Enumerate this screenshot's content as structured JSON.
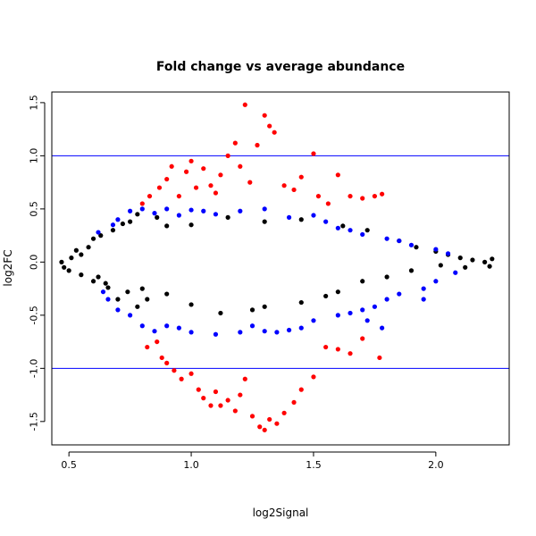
{
  "chart_data": {
    "type": "scatter",
    "title": "Fold change vs average abundance",
    "xlabel": "log2Signal",
    "ylabel": "log2FC",
    "xlim": [
      0.43,
      2.3
    ],
    "ylim": [
      -1.72,
      1.6
    ],
    "x_ticks": [
      0.5,
      1.0,
      1.5,
      2.0
    ],
    "x_tick_labels": [
      "0.5",
      "1.0",
      "1.5",
      "2.0"
    ],
    "y_ticks": [
      -1.5,
      -1.0,
      -0.5,
      0.0,
      0.5,
      1.0,
      1.5
    ],
    "y_tick_labels": [
      "-1.5",
      "-1.0",
      "-0.5",
      "0.0",
      "0.5",
      "1.0",
      "1.5"
    ],
    "grid": false,
    "reference_lines": [
      {
        "axis": "y",
        "value": 1.0,
        "color": "#0000ff"
      },
      {
        "axis": "y",
        "value": -1.0,
        "color": "#0000ff"
      }
    ],
    "series": [
      {
        "color": "#000000",
        "points": [
          [
            0.47,
            0.0
          ],
          [
            0.48,
            -0.05
          ],
          [
            0.5,
            -0.08
          ],
          [
            0.51,
            0.04
          ],
          [
            0.53,
            0.11
          ],
          [
            0.55,
            0.07
          ],
          [
            0.55,
            -0.12
          ],
          [
            0.58,
            0.14
          ],
          [
            0.6,
            0.22
          ],
          [
            0.62,
            -0.14
          ],
          [
            0.63,
            0.25
          ],
          [
            0.65,
            -0.2
          ],
          [
            0.68,
            0.3
          ],
          [
            0.7,
            -0.35
          ],
          [
            0.72,
            0.36
          ],
          [
            0.75,
            0.38
          ],
          [
            0.78,
            0.45
          ],
          [
            0.8,
            -0.25
          ],
          [
            0.86,
            0.42
          ],
          [
            0.9,
            0.34
          ],
          [
            1.0,
            0.35
          ],
          [
            1.15,
            0.42
          ],
          [
            1.3,
            0.38
          ],
          [
            1.45,
            0.4
          ],
          [
            1.62,
            0.34
          ],
          [
            1.72,
            0.3
          ],
          [
            1.85,
            0.2
          ],
          [
            1.92,
            0.14
          ],
          [
            2.0,
            0.1
          ],
          [
            2.05,
            0.07
          ],
          [
            2.1,
            0.04
          ],
          [
            2.15,
            0.02
          ],
          [
            2.2,
            0.0
          ],
          [
            2.22,
            -0.04
          ],
          [
            2.23,
            0.03
          ],
          [
            2.12,
            -0.05
          ],
          [
            2.02,
            -0.03
          ],
          [
            1.9,
            -0.08
          ],
          [
            1.8,
            -0.14
          ],
          [
            1.7,
            -0.18
          ],
          [
            1.6,
            -0.28
          ],
          [
            1.55,
            -0.32
          ],
          [
            1.45,
            -0.38
          ],
          [
            1.3,
            -0.42
          ],
          [
            1.25,
            -0.45
          ],
          [
            1.12,
            -0.48
          ],
          [
            1.0,
            -0.4
          ],
          [
            0.9,
            -0.3
          ],
          [
            0.82,
            -0.35
          ],
          [
            0.78,
            -0.42
          ],
          [
            0.74,
            -0.28
          ],
          [
            0.66,
            -0.24
          ],
          [
            0.6,
            -0.18
          ]
        ]
      },
      {
        "color": "#0000ff",
        "points": [
          [
            0.75,
            0.48
          ],
          [
            0.8,
            0.5
          ],
          [
            0.85,
            0.46
          ],
          [
            0.9,
            0.5
          ],
          [
            0.95,
            0.44
          ],
          [
            1.0,
            0.49
          ],
          [
            1.05,
            0.48
          ],
          [
            1.1,
            0.45
          ],
          [
            1.2,
            0.48
          ],
          [
            1.3,
            0.5
          ],
          [
            1.4,
            0.42
          ],
          [
            1.5,
            0.44
          ],
          [
            1.55,
            0.38
          ],
          [
            1.6,
            0.32
          ],
          [
            1.65,
            0.3
          ],
          [
            1.7,
            0.26
          ],
          [
            1.8,
            0.22
          ],
          [
            1.85,
            0.2
          ],
          [
            1.9,
            0.16
          ],
          [
            2.0,
            0.12
          ],
          [
            2.05,
            0.08
          ],
          [
            2.08,
            -0.1
          ],
          [
            2.0,
            -0.18
          ],
          [
            1.95,
            -0.25
          ],
          [
            1.85,
            -0.3
          ],
          [
            1.8,
            -0.35
          ],
          [
            1.75,
            -0.42
          ],
          [
            1.7,
            -0.45
          ],
          [
            1.65,
            -0.48
          ],
          [
            1.6,
            -0.5
          ],
          [
            1.5,
            -0.55
          ],
          [
            1.45,
            -0.62
          ],
          [
            1.4,
            -0.64
          ],
          [
            1.35,
            -0.66
          ],
          [
            1.3,
            -0.65
          ],
          [
            1.25,
            -0.6
          ],
          [
            1.2,
            -0.66
          ],
          [
            1.1,
            -0.68
          ],
          [
            1.0,
            -0.66
          ],
          [
            0.95,
            -0.62
          ],
          [
            0.9,
            -0.6
          ],
          [
            0.85,
            -0.65
          ],
          [
            0.8,
            -0.6
          ],
          [
            0.75,
            -0.5
          ],
          [
            0.7,
            -0.45
          ],
          [
            0.66,
            -0.35
          ],
          [
            0.64,
            -0.28
          ],
          [
            0.62,
            0.28
          ],
          [
            0.68,
            0.35
          ],
          [
            0.7,
            0.4
          ],
          [
            1.78,
            -0.62
          ],
          [
            1.72,
            -0.55
          ],
          [
            1.95,
            -0.35
          ]
        ]
      },
      {
        "color": "#ff0000",
        "points": [
          [
            0.8,
            0.55
          ],
          [
            0.83,
            0.62
          ],
          [
            0.87,
            0.7
          ],
          [
            0.9,
            0.78
          ],
          [
            0.92,
            0.9
          ],
          [
            0.95,
            0.62
          ],
          [
            0.98,
            0.85
          ],
          [
            1.0,
            0.95
          ],
          [
            1.02,
            0.7
          ],
          [
            1.05,
            0.88
          ],
          [
            1.08,
            0.72
          ],
          [
            1.1,
            0.65
          ],
          [
            1.12,
            0.82
          ],
          [
            1.15,
            1.0
          ],
          [
            1.18,
            1.12
          ],
          [
            1.2,
            0.9
          ],
          [
            1.22,
            1.48
          ],
          [
            1.24,
            0.75
          ],
          [
            1.27,
            1.1
          ],
          [
            1.3,
            1.38
          ],
          [
            1.32,
            1.28
          ],
          [
            1.34,
            1.22
          ],
          [
            1.38,
            0.72
          ],
          [
            1.42,
            0.68
          ],
          [
            1.45,
            0.8
          ],
          [
            1.5,
            1.02
          ],
          [
            1.52,
            0.62
          ],
          [
            1.56,
            0.55
          ],
          [
            1.6,
            0.82
          ],
          [
            1.65,
            0.62
          ],
          [
            1.7,
            0.6
          ],
          [
            1.75,
            0.62
          ],
          [
            1.78,
            0.64
          ],
          [
            0.82,
            -0.8
          ],
          [
            0.86,
            -0.75
          ],
          [
            0.88,
            -0.9
          ],
          [
            0.9,
            -0.95
          ],
          [
            0.93,
            -1.02
          ],
          [
            0.96,
            -1.1
          ],
          [
            1.0,
            -1.05
          ],
          [
            1.03,
            -1.2
          ],
          [
            1.05,
            -1.28
          ],
          [
            1.08,
            -1.35
          ],
          [
            1.1,
            -1.22
          ],
          [
            1.12,
            -1.35
          ],
          [
            1.15,
            -1.3
          ],
          [
            1.18,
            -1.4
          ],
          [
            1.2,
            -1.25
          ],
          [
            1.22,
            -1.1
          ],
          [
            1.25,
            -1.45
          ],
          [
            1.28,
            -1.55
          ],
          [
            1.3,
            -1.58
          ],
          [
            1.32,
            -1.48
          ],
          [
            1.35,
            -1.52
          ],
          [
            1.38,
            -1.42
          ],
          [
            1.42,
            -1.32
          ],
          [
            1.45,
            -1.2
          ],
          [
            1.5,
            -1.08
          ],
          [
            1.55,
            -0.8
          ],
          [
            1.6,
            -0.82
          ],
          [
            1.65,
            -0.86
          ],
          [
            1.7,
            -0.72
          ],
          [
            1.77,
            -0.9
          ]
        ]
      }
    ]
  }
}
